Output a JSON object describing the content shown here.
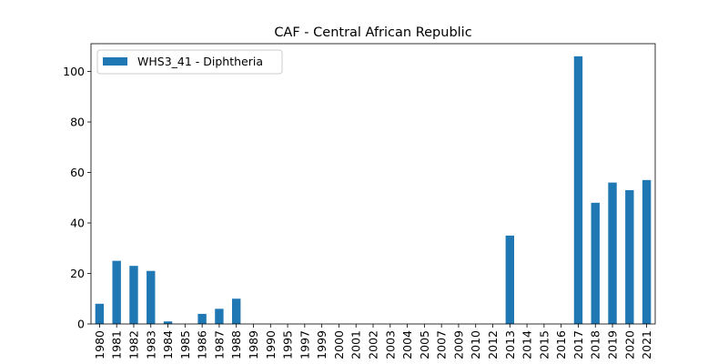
{
  "chart_data": {
    "type": "bar",
    "title": "CAF - Central African Republic",
    "xlabel": "",
    "ylabel": "",
    "categories": [
      "1980",
      "1981",
      "1982",
      "1983",
      "1984",
      "1985",
      "1986",
      "1987",
      "1988",
      "1989",
      "1990",
      "1995",
      "1997",
      "1999",
      "2000",
      "2001",
      "2002",
      "2003",
      "2004",
      "2005",
      "2007",
      "2009",
      "2010",
      "2012",
      "2013",
      "2014",
      "2015",
      "2016",
      "2017",
      "2018",
      "2019",
      "2020",
      "2021"
    ],
    "series": [
      {
        "name": "WHS3_41 - Diphtheria",
        "color": "#1f77b4",
        "values": [
          8,
          25,
          23,
          21,
          1,
          0,
          4,
          6,
          10,
          0,
          0,
          0,
          0,
          0,
          0,
          0,
          0,
          0,
          0,
          0,
          0,
          0,
          0,
          0,
          35,
          0,
          0,
          0,
          106,
          48,
          56,
          53,
          57
        ]
      }
    ],
    "ylim": [
      0,
      111
    ],
    "yticks": [
      0,
      20,
      40,
      60,
      80,
      100
    ],
    "grid": false,
    "legend_position": "top-left"
  }
}
